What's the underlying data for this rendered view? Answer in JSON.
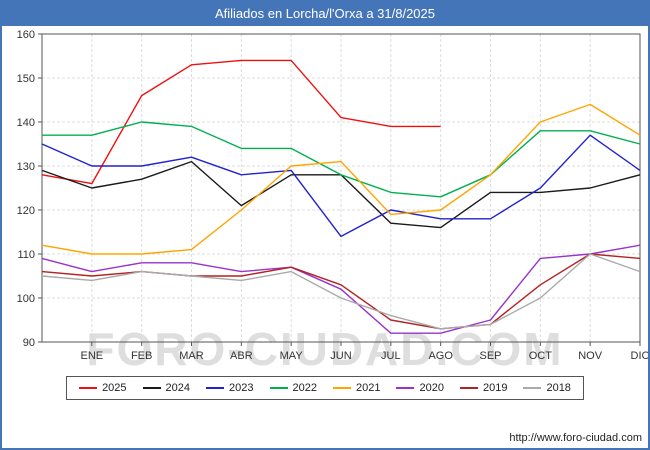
{
  "header": {
    "title": "Afiliados en Lorcha/l'Orxa a 31/8/2025"
  },
  "watermark": {
    "text": "FORO-CIUDAD.COM"
  },
  "footer": {
    "url": "http://www.foro-ciudad.com"
  },
  "colors": {
    "titlebar": "#4575b9",
    "grid": "#dcdcdc",
    "axis": "#555555",
    "watermark": "#c9c9c9"
  },
  "chart_data": {
    "type": "line",
    "title": "Afiliados en Lorcha/l'Orxa a 31/8/2025",
    "xlabel": "",
    "ylabel": "",
    "ylim": [
      90,
      160
    ],
    "ytick_step": 10,
    "grid": true,
    "legend_position": "bottom",
    "categories": [
      "ENE",
      "FEB",
      "MAR",
      "ABR",
      "MAY",
      "JUN",
      "JUL",
      "AGO",
      "SEP",
      "OCT",
      "NOV",
      "DIC"
    ],
    "series_note": "start_value is the value drawn at the left axis edge (December of previous year); 2025 data ends in August",
    "series": [
      {
        "name": "2025",
        "color": "#ee1111",
        "start_value": 128,
        "values": [
          126,
          146,
          153,
          154,
          154,
          141,
          139,
          139,
          null,
          null,
          null,
          null
        ]
      },
      {
        "name": "2024",
        "color": "#1a1a1a",
        "start_value": 129,
        "values": [
          125,
          127,
          131,
          121,
          128,
          128,
          117,
          116,
          124,
          124,
          125,
          128
        ]
      },
      {
        "name": "2023",
        "color": "#2222cc",
        "start_value": 135,
        "values": [
          130,
          130,
          132,
          128,
          129,
          114,
          120,
          118,
          118,
          125,
          137,
          129
        ]
      },
      {
        "name": "2022",
        "color": "#00b050",
        "start_value": 137,
        "values": [
          137,
          140,
          139,
          134,
          134,
          128,
          124,
          123,
          128,
          138,
          138,
          135
        ]
      },
      {
        "name": "2021",
        "color": "#ffa500",
        "start_value": 112,
        "values": [
          110,
          110,
          111,
          120,
          130,
          131,
          119,
          120,
          128,
          140,
          144,
          137
        ]
      },
      {
        "name": "2020",
        "color": "#9933cc",
        "start_value": 109,
        "values": [
          106,
          108,
          108,
          106,
          107,
          102,
          92,
          92,
          95,
          109,
          110,
          112
        ]
      },
      {
        "name": "2019",
        "color": "#b22222",
        "start_value": 106,
        "values": [
          105,
          106,
          105,
          105,
          107,
          103,
          95,
          93,
          94,
          103,
          110,
          109
        ]
      },
      {
        "name": "2018",
        "color": "#aaaaaa",
        "start_value": 105,
        "values": [
          104,
          106,
          105,
          104,
          106,
          100,
          96,
          93,
          94,
          100,
          110,
          106
        ]
      }
    ]
  }
}
